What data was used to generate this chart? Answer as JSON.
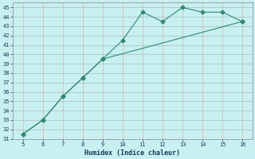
{
  "line1_x": [
    5,
    6,
    7,
    8,
    9,
    10,
    11,
    12,
    13,
    14,
    15,
    16
  ],
  "line1_y": [
    31.5,
    33.0,
    35.5,
    37.5,
    39.5,
    41.5,
    44.5,
    43.5,
    45.0,
    44.5,
    44.5,
    43.5
  ],
  "line2_x": [
    5,
    6,
    7,
    8,
    9,
    16
  ],
  "line2_y": [
    31.5,
    33.0,
    35.5,
    37.5,
    39.5,
    43.5
  ],
  "line_color": "#2e8b72",
  "bg_color": "#c8f0f0",
  "grid_color_major": "#aaaaaa",
  "grid_color_minor": "#dda0a0",
  "xlabel": "Humidex (Indice chaleur)",
  "xlim": [
    4.5,
    16.5
  ],
  "ylim": [
    31,
    45.5
  ],
  "xticks": [
    5,
    6,
    7,
    8,
    9,
    10,
    11,
    12,
    13,
    14,
    15,
    16
  ],
  "yticks": [
    31,
    32,
    33,
    34,
    35,
    36,
    37,
    38,
    39,
    40,
    41,
    42,
    43,
    44,
    45
  ],
  "font_color": "#1a3a5c",
  "marker": "D",
  "markersize": 2.5
}
